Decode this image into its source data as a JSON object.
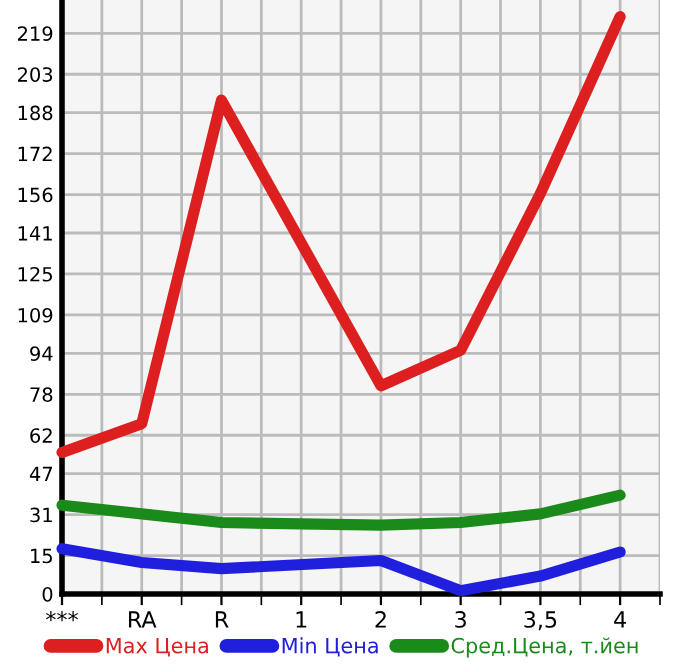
{
  "chart_data": {
    "type": "line",
    "categories": [
      "***",
      "RA",
      "R",
      "1",
      "2",
      "3",
      "3,5",
      "4"
    ],
    "series": [
      {
        "name": "Max Цена",
        "color": "#dd1f1f",
        "values": [
          55.3,
          66.5,
          192.9,
          null,
          81.3,
          95.2,
          156.4,
          225.5
        ]
      },
      {
        "name": "Min Цена",
        "color": "#1f1fdd",
        "values": [
          17.7,
          12.3,
          9.9,
          null,
          13.1,
          1.3,
          7.0,
          16.4
        ]
      },
      {
        "name": "Сред.Цена, т.йен",
        "color": "#1a8a1a",
        "values": [
          34.7,
          31.3,
          27.9,
          null,
          26.9,
          27.9,
          31.3,
          38.6
        ]
      }
    ],
    "ylim": [
      0,
      232
    ],
    "yticks": [
      0,
      15,
      31,
      47,
      62,
      78,
      94,
      109,
      125,
      141,
      156,
      172,
      188,
      203,
      219
    ],
    "grid": true,
    "legend": "bottom",
    "marker": "none",
    "line_style": "solid"
  }
}
